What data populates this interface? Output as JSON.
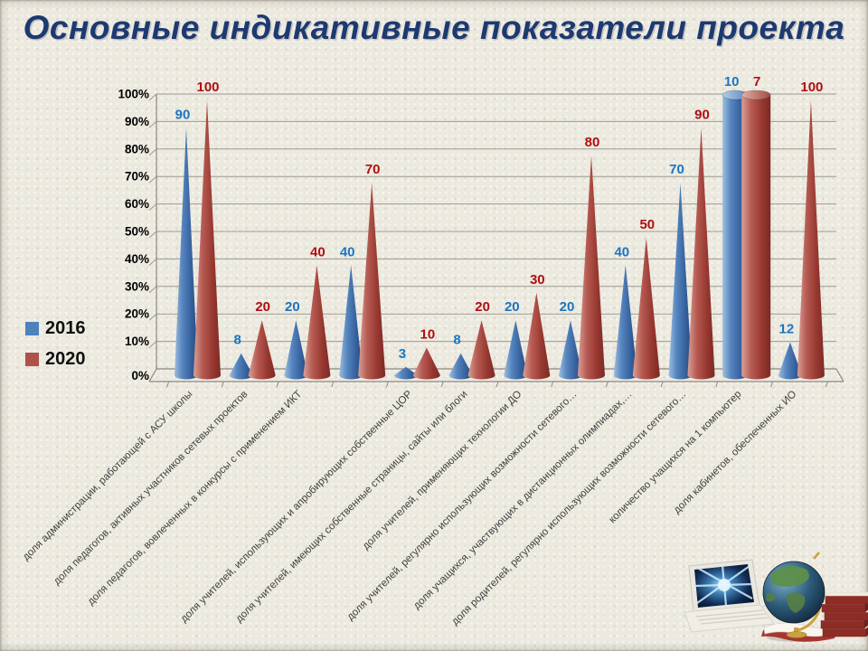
{
  "slide": {
    "title": "Основные индикативные показатели проекта"
  },
  "chart_data": {
    "type": "bar",
    "variant": "3d-cone-columns",
    "title": "",
    "xlabel": "",
    "ylabel": "",
    "ylim": [
      0,
      100
    ],
    "grid": true,
    "legend_position": "left",
    "y_ticks": [
      "0%",
      "10%",
      "20%",
      "30%",
      "40%",
      "50%",
      "60%",
      "70%",
      "80%",
      "90%",
      "100%"
    ],
    "categories": [
      "доля администрации, работающей с АСУ школы",
      "доля педагогов, активных участников сетевых проектов",
      "доля педагогов, вовлеченных в конкурсы с применением ИКТ",
      "",
      "доля учителей, использующих и апробирующих собственные ЦОР",
      "доля учителей, имеющих собственные страницы, сайты или блоги",
      "доля учителей, применяющих технологии ДО",
      "доля учителей, регулярно использующих возможности сетевого…",
      "доля учащихся, участвующих в дистанционных олимпиадах,…",
      "доля родителей, регулярно использующих возможности сетевого…",
      "количество учащихся на 1 компьютер",
      "доля кабинетов, обеспеченных ИО"
    ],
    "series": [
      {
        "name": "2016",
        "color": "#4f81bd",
        "label_color": "#1a75c2",
        "values": [
          90,
          8,
          20,
          40,
          3,
          8,
          20,
          20,
          40,
          70,
          10,
          12
        ]
      },
      {
        "name": "2020",
        "color": "#b0524b",
        "label_color": "#b00d10",
        "values": [
          100,
          20,
          40,
          70,
          10,
          20,
          30,
          80,
          50,
          90,
          7,
          100
        ]
      }
    ],
    "full_height_categories": [
      10
    ],
    "full_height_shape": "cylinder"
  }
}
